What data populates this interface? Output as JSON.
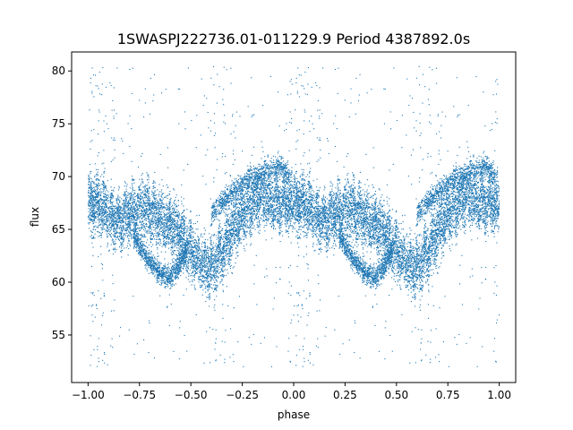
{
  "chart_data": {
    "type": "scatter",
    "title": "1SWASPJ222736.01-011229.9 Period 4387892.0s",
    "xlabel": "phase",
    "ylabel": "flux",
    "xlim": [
      -1.08,
      1.08
    ],
    "ylim": [
      50.5,
      81.8
    ],
    "xticks": [
      -1.0,
      -0.75,
      -0.5,
      -0.25,
      0.0,
      0.25,
      0.5,
      0.75,
      1.0
    ],
    "xtick_labels": [
      "−1.00",
      "−0.75",
      "−0.50",
      "−0.25",
      "0.00",
      "0.25",
      "0.50",
      "0.75",
      "1.00"
    ],
    "yticks": [
      55,
      60,
      65,
      70,
      75,
      80
    ],
    "ytick_labels": [
      "55",
      "60",
      "65",
      "70",
      "75",
      "80"
    ],
    "grid": false,
    "point_color": "#1f77b4",
    "profile": {
      "phase": [
        0.0,
        0.04,
        0.08,
        0.12,
        0.16,
        0.2,
        0.24,
        0.28,
        0.32,
        0.36,
        0.4,
        0.44,
        0.48,
        0.52,
        0.56,
        0.6,
        0.64,
        0.68,
        0.72,
        0.76,
        0.8,
        0.84,
        0.88,
        0.92,
        0.96,
        1.0
      ],
      "flux": [
        67.5,
        67.5,
        67.0,
        66.0,
        65.8,
        66.5,
        66.8,
        67.0,
        66.5,
        66.0,
        65.5,
        65.0,
        63.5,
        62.5,
        61.5,
        61.5,
        62.5,
        64.0,
        65.5,
        66.5,
        67.5,
        68.0,
        68.0,
        67.5,
        67.5,
        67.5
      ],
      "spread": 2.6
    },
    "lower_branch": {
      "phase": [
        0.22,
        0.28,
        0.34,
        0.4,
        0.44,
        0.48
      ],
      "flux": [
        64.5,
        62.5,
        61.0,
        60.5,
        61.5,
        63.0
      ]
    },
    "upper_branch": {
      "phase": [
        0.6,
        0.68,
        0.76,
        0.82,
        0.88,
        0.94,
        0.98
      ],
      "flux": [
        66.5,
        68.0,
        69.5,
        70.0,
        70.5,
        71.0,
        70.0
      ]
    },
    "outlier_flux_range": [
      52,
      80.5
    ]
  }
}
